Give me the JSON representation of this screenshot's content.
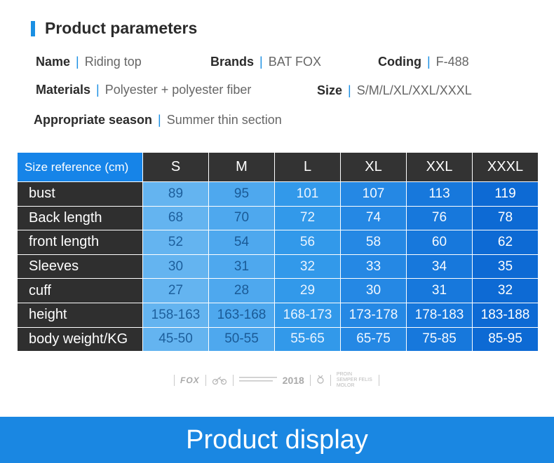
{
  "header": {
    "title": "Product parameters",
    "accent_color": "#1a8fe3"
  },
  "params": {
    "name": {
      "label": "Name",
      "value": "Riding top"
    },
    "brands": {
      "label": "Brands",
      "value": "BAT FOX"
    },
    "coding": {
      "label": "Coding",
      "value": "F-488"
    },
    "materials": {
      "label": "Materials",
      "value": "Polyester + polyester fiber"
    },
    "size": {
      "label": "Size",
      "value": "S/M/L/XL/XXL/XXXL"
    },
    "season": {
      "label": "Appropriate season",
      "value": "Summer thin section"
    },
    "separator": "|"
  },
  "table": {
    "corner": "Size reference (cm)",
    "sizes": [
      "S",
      "M",
      "L",
      "XL",
      "XXL",
      "XXXL"
    ],
    "rows": [
      {
        "label": "bust",
        "values": [
          "89",
          "95",
          "101",
          "107",
          "113",
          "119"
        ]
      },
      {
        "label": "Back length",
        "values": [
          "68",
          "70",
          "72",
          "74",
          "76",
          "78"
        ]
      },
      {
        "label": "front length",
        "values": [
          "52",
          "54",
          "56",
          "58",
          "60",
          "62"
        ]
      },
      {
        "label": "Sleeves",
        "values": [
          "30",
          "31",
          "32",
          "33",
          "34",
          "35"
        ]
      },
      {
        "label": "cuff",
        "values": [
          "27",
          "28",
          "29",
          "30",
          "31",
          "32"
        ]
      },
      {
        "label": "height",
        "values": [
          "158-163",
          "163-168",
          "168-173",
          "173-178",
          "178-183",
          "183-188"
        ]
      },
      {
        "label": "body weight/KG",
        "values": [
          "45-50",
          "50-55",
          "55-65",
          "65-75",
          "75-85",
          "85-95"
        ]
      }
    ]
  },
  "brand_strip": {
    "logo_text": "FOX",
    "year": "2018",
    "small_text": "PROIN SEMPER FELIS MOLOR"
  },
  "footer": {
    "title": "Product display",
    "color": "#1a87e2"
  }
}
